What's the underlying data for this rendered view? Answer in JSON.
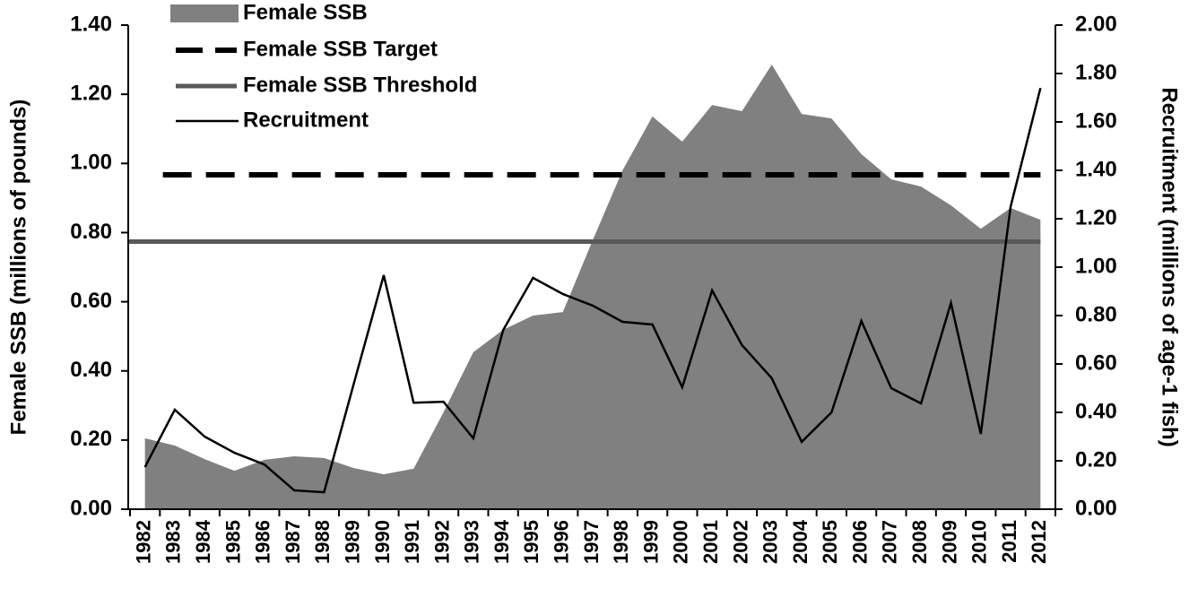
{
  "chart_data": {
    "type": "combo",
    "y_label": "Female SSB (millions of pounds)",
    "y2_label": "Recruitment (millions of age-1 fish)",
    "categories": [
      "1982",
      "1983",
      "1984",
      "1985",
      "1986",
      "1987",
      "1988",
      "1989",
      "1990",
      "1991",
      "1992",
      "1993",
      "1994",
      "1995",
      "1996",
      "1997",
      "1998",
      "1999",
      "2000",
      "2001",
      "2002",
      "2003",
      "2004",
      "2005",
      "2006",
      "2007",
      "2008",
      "2009",
      "2010",
      "2011",
      "2012"
    ],
    "ylim": [
      0,
      1.4
    ],
    "yticks": [
      {
        "value": 0,
        "label": "0.00"
      },
      {
        "value": 0.2,
        "label": "0.20"
      },
      {
        "value": 0.4,
        "label": "0.40"
      },
      {
        "value": 0.6,
        "label": "0.60"
      },
      {
        "value": 0.8,
        "label": "0.80"
      },
      {
        "value": 1.0,
        "label": "1.00"
      },
      {
        "value": 1.2,
        "label": "1.20"
      },
      {
        "value": 1.4,
        "label": "1.40"
      }
    ],
    "y2lim": [
      0,
      2.0
    ],
    "y2ticks": [
      {
        "value": 0,
        "label": "0.00"
      },
      {
        "value": 0.2,
        "label": "0.20"
      },
      {
        "value": 0.4,
        "label": "0.40"
      },
      {
        "value": 0.6,
        "label": "0.60"
      },
      {
        "value": 0.8,
        "label": "0.80"
      },
      {
        "value": 1.0,
        "label": "1.00"
      },
      {
        "value": 1.2,
        "label": "1.20"
      },
      {
        "value": 1.4,
        "label": "1.40"
      },
      {
        "value": 1.6,
        "label": "1.60"
      },
      {
        "value": 1.8,
        "label": "1.80"
      },
      {
        "value": 2.0,
        "label": "2.00"
      }
    ],
    "series": [
      {
        "name": "Female SSB",
        "type": "area",
        "color": "#808080",
        "values": [
          0.205,
          0.184,
          0.145,
          0.111,
          0.143,
          0.153,
          0.148,
          0.119,
          0.101,
          0.117,
          0.28,
          0.454,
          0.519,
          0.56,
          0.57,
          0.778,
          0.98,
          1.136,
          1.063,
          1.169,
          1.151,
          1.286,
          1.143,
          1.13,
          1.027,
          0.954,
          0.933,
          0.879,
          0.811,
          0.871,
          0.837
        ]
      },
      {
        "name": "Female SSB Target",
        "type": "hline",
        "color": "#000000",
        "dashed": true,
        "value": 0.967
      },
      {
        "name": "Female SSB Threshold",
        "type": "hline",
        "color": "#595959",
        "value": 0.774
      },
      {
        "name": "Recruitment",
        "type": "line",
        "color": "#000000",
        "axis": "y2",
        "values": [
          0.174,
          0.411,
          0.3,
          0.233,
          0.185,
          0.078,
          0.07,
          0.52,
          0.967,
          0.44,
          0.444,
          0.293,
          0.74,
          0.956,
          0.889,
          0.841,
          0.774,
          0.763,
          0.504,
          0.904,
          0.678,
          0.541,
          0.278,
          0.4,
          0.778,
          0.5,
          0.437,
          0.852,
          0.311,
          1.25,
          1.74
        ]
      }
    ]
  }
}
